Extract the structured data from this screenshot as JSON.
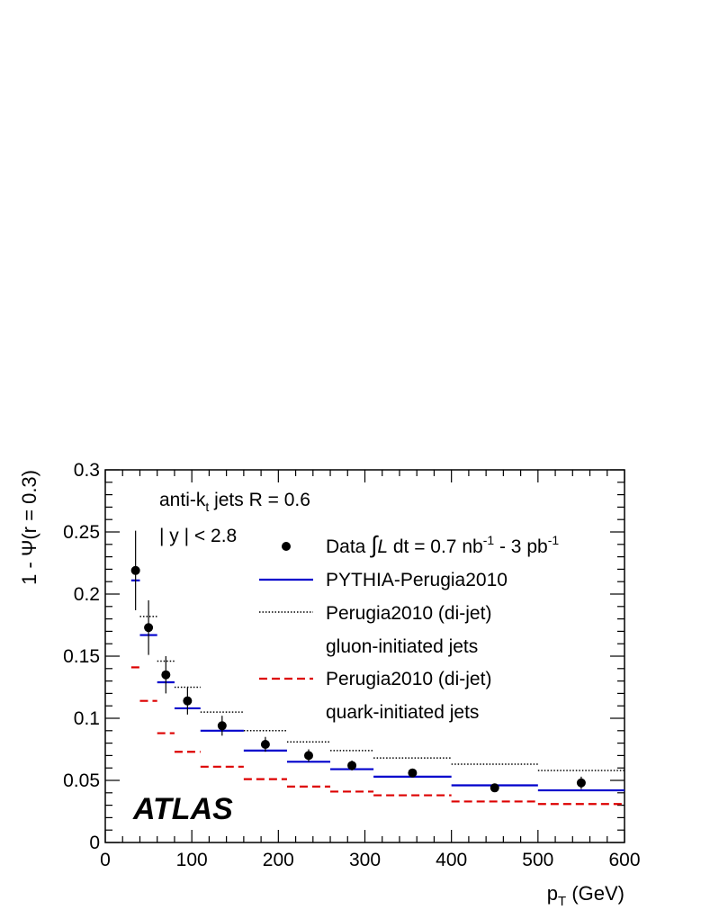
{
  "chart_data": {
    "type": "scatter",
    "xlabel_main": "p",
    "xlabel_sub": "T",
    "xlabel_unit": " (GeV)",
    "ylabel": "1 - Ψ(r = 0.3)",
    "xlim": [
      0,
      600
    ],
    "ylim": [
      0,
      0.3
    ],
    "x_ticks": [
      "0",
      "100",
      "200",
      "300",
      "400",
      "500",
      "600"
    ],
    "y_ticks": [
      "0",
      "0.05",
      "0.1",
      "0.15",
      "0.2",
      "0.25",
      "0.3"
    ],
    "annotations": {
      "jets_pre": "anti-k",
      "jets_sub": "t",
      "jets_post": " jets R = 0.6",
      "rapidity": "| y | < 2.8",
      "experiment": "ATLAS"
    },
    "legend": {
      "data_pre": "Data ",
      "data_mid": " dt = 0.7 nb",
      "data_sup1": "-1",
      "data_mid2": " - 3 pb",
      "data_sup2": "-1",
      "pythia": "PYTHIA-Perugia2010",
      "gluon_line1": "Perugia2010 (di-jet)",
      "gluon_line2": "gluon-initiated jets",
      "quark_line1": "Perugia2010 (di-jet)",
      "quark_line2": "quark-initiated jets"
    },
    "colors": {
      "data": "#000000",
      "pythia": "#0000cc",
      "gluon": "#000000",
      "quark": "#dd0000"
    },
    "data_points": [
      {
        "x": 35,
        "y": 0.219,
        "ylo": 0.187,
        "yhi": 0.251
      },
      {
        "x": 50,
        "y": 0.173,
        "ylo": 0.151,
        "yhi": 0.195
      },
      {
        "x": 70,
        "y": 0.135,
        "ylo": 0.12,
        "yhi": 0.15
      },
      {
        "x": 95,
        "y": 0.114,
        "ylo": 0.103,
        "yhi": 0.125
      },
      {
        "x": 135,
        "y": 0.094,
        "ylo": 0.086,
        "yhi": 0.102
      },
      {
        "x": 185,
        "y": 0.079,
        "ylo": 0.073,
        "yhi": 0.085
      },
      {
        "x": 235,
        "y": 0.07,
        "ylo": 0.065,
        "yhi": 0.075
      },
      {
        "x": 285,
        "y": 0.062,
        "ylo": 0.058,
        "yhi": 0.066
      },
      {
        "x": 355,
        "y": 0.056,
        "ylo": 0.053,
        "yhi": 0.059
      },
      {
        "x": 450,
        "y": 0.044,
        "ylo": 0.042,
        "yhi": 0.047
      },
      {
        "x": 550,
        "y": 0.048,
        "ylo": 0.043,
        "yhi": 0.053
      }
    ],
    "pythia": [
      {
        "x0": 30,
        "x1": 40,
        "y": 0.211
      },
      {
        "x0": 40,
        "x1": 60,
        "y": 0.167
      },
      {
        "x0": 60,
        "x1": 80,
        "y": 0.129
      },
      {
        "x0": 80,
        "x1": 110,
        "y": 0.108
      },
      {
        "x0": 110,
        "x1": 160,
        "y": 0.09
      },
      {
        "x0": 160,
        "x1": 210,
        "y": 0.074
      },
      {
        "x0": 210,
        "x1": 260,
        "y": 0.065
      },
      {
        "x0": 260,
        "x1": 310,
        "y": 0.059
      },
      {
        "x0": 310,
        "x1": 400,
        "y": 0.053
      },
      {
        "x0": 400,
        "x1": 500,
        "y": 0.046
      },
      {
        "x0": 500,
        "x1": 600,
        "y": 0.042
      }
    ],
    "gluon": [
      {
        "x0": 40,
        "x1": 60,
        "y": 0.182
      },
      {
        "x0": 60,
        "x1": 80,
        "y": 0.146
      },
      {
        "x0": 80,
        "x1": 110,
        "y": 0.125
      },
      {
        "x0": 110,
        "x1": 160,
        "y": 0.105
      },
      {
        "x0": 160,
        "x1": 210,
        "y": 0.09
      },
      {
        "x0": 210,
        "x1": 260,
        "y": 0.081
      },
      {
        "x0": 260,
        "x1": 310,
        "y": 0.074
      },
      {
        "x0": 310,
        "x1": 400,
        "y": 0.068
      },
      {
        "x0": 400,
        "x1": 500,
        "y": 0.063
      },
      {
        "x0": 500,
        "x1": 600,
        "y": 0.058
      }
    ],
    "quark": [
      {
        "x0": 30,
        "x1": 40,
        "y": 0.141
      },
      {
        "x0": 40,
        "x1": 60,
        "y": 0.114
      },
      {
        "x0": 60,
        "x1": 80,
        "y": 0.088
      },
      {
        "x0": 80,
        "x1": 110,
        "y": 0.073
      },
      {
        "x0": 110,
        "x1": 160,
        "y": 0.061
      },
      {
        "x0": 160,
        "x1": 210,
        "y": 0.051
      },
      {
        "x0": 210,
        "x1": 260,
        "y": 0.045
      },
      {
        "x0": 260,
        "x1": 310,
        "y": 0.041
      },
      {
        "x0": 310,
        "x1": 400,
        "y": 0.038
      },
      {
        "x0": 400,
        "x1": 500,
        "y": 0.033
      },
      {
        "x0": 500,
        "x1": 600,
        "y": 0.031
      }
    ]
  }
}
